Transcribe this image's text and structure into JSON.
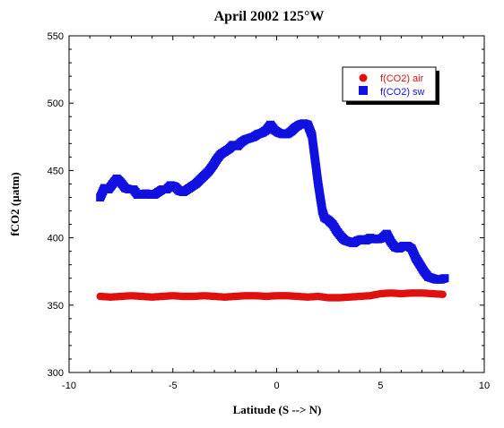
{
  "chart_data": {
    "type": "scatter",
    "title": "April 2002 125°W",
    "xlabel": "Latitude (S --> N)",
    "ylabel": "fCO2 (µatm)",
    "xlim": [
      -10,
      10
    ],
    "ylim": [
      300,
      550
    ],
    "xticks": [
      -10,
      -5,
      0,
      5,
      10
    ],
    "yticks": [
      300,
      350,
      400,
      450,
      500,
      550
    ],
    "grid": false,
    "legend_position": "top-right",
    "series": [
      {
        "name": "f(CO2) air",
        "marker": "circle",
        "color": "#e01010",
        "x": [
          -8.5,
          -8.0,
          -7.5,
          -7.0,
          -6.5,
          -6.0,
          -5.5,
          -5.0,
          -4.5,
          -4.0,
          -3.5,
          -3.0,
          -2.5,
          -2.0,
          -1.5,
          -1.0,
          -0.5,
          0.0,
          0.5,
          1.0,
          1.5,
          2.0,
          2.5,
          3.0,
          3.5,
          4.0,
          4.5,
          5.0,
          5.5,
          6.0,
          6.5,
          7.0,
          7.5,
          8.0
        ],
        "y": [
          356.5,
          356,
          356.5,
          357,
          356.5,
          356,
          356.5,
          357,
          356.5,
          356.5,
          357,
          356.5,
          356,
          356.5,
          357,
          357,
          356.5,
          357,
          357,
          356.5,
          356,
          356.5,
          355.5,
          355.5,
          356,
          356.5,
          357,
          358.5,
          359,
          358.5,
          359,
          359,
          358.5,
          358
        ]
      },
      {
        "name": "f(CO2) sw",
        "marker": "square",
        "color": "#1010e0",
        "x": [
          -8.5,
          -8.3,
          -8.1,
          -7.9,
          -7.7,
          -7.5,
          -7.3,
          -7.1,
          -6.9,
          -6.7,
          -6.5,
          -6.3,
          -6.1,
          -5.9,
          -5.7,
          -5.5,
          -5.3,
          -5.1,
          -4.9,
          -4.7,
          -4.5,
          -4.3,
          -4.1,
          -3.9,
          -3.7,
          -3.5,
          -3.3,
          -3.1,
          -2.9,
          -2.7,
          -2.5,
          -2.3,
          -2.1,
          -1.9,
          -1.7,
          -1.5,
          -1.3,
          -1.1,
          -0.9,
          -0.7,
          -0.5,
          -0.3,
          -0.1,
          0.1,
          0.3,
          0.5,
          0.7,
          0.9,
          1.1,
          1.3,
          1.5,
          1.7,
          1.8,
          1.9,
          2.0,
          2.1,
          2.2,
          2.3,
          2.5,
          2.7,
          2.9,
          3.1,
          3.3,
          3.5,
          3.7,
          3.9,
          4.1,
          4.3,
          4.5,
          4.7,
          4.9,
          5.1,
          5.3,
          5.5,
          5.7,
          5.9,
          6.1,
          6.3,
          6.5,
          6.7,
          6.9,
          7.1,
          7.3,
          7.5,
          7.7,
          7.9,
          8.1
        ],
        "y": [
          430,
          437,
          436,
          440,
          444,
          441,
          437,
          436,
          436,
          432,
          432,
          433,
          432,
          432,
          434,
          436,
          436,
          439,
          438,
          435,
          434,
          436,
          438,
          440,
          443,
          446,
          449,
          453,
          458,
          462,
          464,
          466,
          469,
          468,
          471,
          473,
          474,
          475,
          477,
          478,
          480,
          484,
          480,
          478,
          477,
          477,
          479,
          482,
          484,
          485,
          484,
          476,
          464,
          452,
          440,
          430,
          420,
          415,
          413,
          410,
          405,
          401,
          398,
          397,
          396,
          398,
          399,
          398,
          400,
          399,
          399,
          400,
          403,
          397,
          393,
          392,
          394,
          394,
          392,
          385,
          380,
          375,
          371,
          370,
          369,
          369,
          370
        ]
      }
    ]
  }
}
